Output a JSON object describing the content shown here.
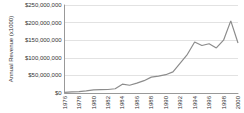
{
  "chart_data": {
    "type": "line",
    "y_label": "Annual Revenue (x1000)",
    "categories": [
      "1976",
      null,
      "1978",
      null,
      "1980",
      null,
      "1982",
      null,
      "1984",
      null,
      "1986",
      null,
      "1988",
      null,
      "1990",
      null,
      "1992",
      null,
      "1994",
      null,
      "1996",
      null,
      "1998",
      null,
      "2000"
    ],
    "values": [
      2000000,
      3000000,
      4000000,
      6000000,
      9000000,
      9500000,
      10000000,
      12000000,
      25000000,
      22000000,
      28000000,
      35000000,
      45000000,
      48000000,
      52000000,
      60000000,
      85000000,
      110000000,
      145000000,
      135000000,
      140000000,
      128000000,
      150000000,
      205000000,
      142000000
    ],
    "color": "#8c8c8c",
    "ylim": [
      0,
      250000000
    ],
    "yticks": [
      {
        "value": 0,
        "label": "$0"
      },
      {
        "value": 50000000,
        "label": "$50,000,000"
      },
      {
        "value": 100000000,
        "label": "$100,000,000"
      },
      {
        "value": 150000000,
        "label": "$150,000,000"
      },
      {
        "value": 200000000,
        "label": "$200,000,000"
      },
      {
        "value": 250000000,
        "label": "$250,000,000"
      }
    ],
    "grid": true
  }
}
